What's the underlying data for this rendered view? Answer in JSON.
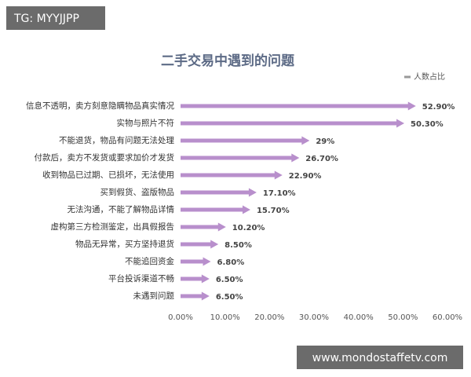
{
  "chart_data": {
    "type": "bar",
    "orientation": "horizontal",
    "title": "二手交易中遇到的问题",
    "categories": [
      "信息不透明，卖方刻意隐瞒物品真实情况",
      "实物与照片不符",
      "不能退货，物品有问题无法处理",
      "付款后，卖方不发货或要求加价才发货",
      "收到物品已过期、已损坏，无法使用",
      "买到假货、盗版物品",
      "无法沟通，不能了解物品详情",
      "虚构第三方检测鉴定，出具假报告",
      "物品无异常，买方坚持退货",
      "不能追回资金",
      "平台投诉渠道不畅",
      "未遇到问题"
    ],
    "series": [
      {
        "name": "人数占比",
        "color": "#b88fcc",
        "values": [
          52.9,
          50.3,
          29,
          26.7,
          22.9,
          17.1,
          15.7,
          10.2,
          8.5,
          6.8,
          6.5,
          6.5
        ],
        "value_labels": [
          "52.90%",
          "50.30%",
          "29%",
          "26.70%",
          "22.90%",
          "17.10%",
          "15.70%",
          "10.20%",
          "8.50%",
          "6.80%",
          "6.50%",
          "6.50%"
        ]
      }
    ],
    "xlim": [
      0,
      60
    ],
    "xticks": [
      {
        "value": 0,
        "label": "0.00%"
      },
      {
        "value": 10,
        "label": "10.00%"
      },
      {
        "value": 20,
        "label": "20.00%"
      },
      {
        "value": 30,
        "label": "30.00%"
      },
      {
        "value": 40,
        "label": "40.00%"
      },
      {
        "value": 50,
        "label": "50.00%"
      },
      {
        "value": 60,
        "label": "60.00%"
      }
    ],
    "legend": "top-right"
  },
  "overlays": {
    "top_left": "TG: MYYJJPP",
    "bottom_right": "www.mondostaffetv.com"
  }
}
